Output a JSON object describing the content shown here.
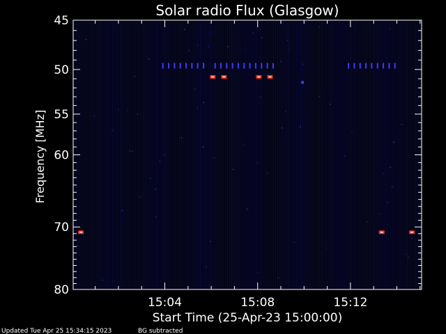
{
  "chart_data": {
    "type": "heatmap",
    "title": "Solar radio Flux (Glasgow)",
    "xlabel": "Start Time (25-Apr-23 15:00:00)",
    "ylabel": "Frequency [MHz]",
    "xlim": [
      "15:00:03",
      "15:15:04"
    ],
    "ylim": [
      45,
      80
    ],
    "y_scale": "log",
    "y_axis_inverted": true,
    "x_ticks": [
      "15:04",
      "15:08",
      "15:12"
    ],
    "y_ticks": [
      45,
      50,
      55,
      60,
      70,
      80
    ],
    "grid": false,
    "background_color": "#05051a",
    "colors": {
      "background": "#000000",
      "plot_background": "#05051a",
      "stripe": "#0a0a3a",
      "faint_blue": "#2a2aa8",
      "mid_blue": "#3c3cff",
      "hot_red": "#ff2a1a",
      "hot_center": "#ffd0c0",
      "axis": "#ffffff",
      "text": "#ffffff"
    },
    "interference_50MHz_times": [
      "15:03:55",
      "15:04:10",
      "15:04:25",
      "15:04:40",
      "15:04:55",
      "15:05:10",
      "15:05:25",
      "15:05:40",
      "15:06:10",
      "15:06:25",
      "15:06:40",
      "15:06:55",
      "15:07:10",
      "15:07:25",
      "15:07:40",
      "15:07:55",
      "15:08:10",
      "15:08:25",
      "15:08:40",
      "15:11:55",
      "15:12:10",
      "15:12:25",
      "15:12:40",
      "15:12:55",
      "15:13:10",
      "15:13:25",
      "15:13:40",
      "15:13:55"
    ],
    "hot_pixels": [
      {
        "time": "15:06:04",
        "freq": 50.8,
        "intensity": "high"
      },
      {
        "time": "15:06:33",
        "freq": 50.8,
        "intensity": "high"
      },
      {
        "time": "15:08:03",
        "freq": 50.8,
        "intensity": "high"
      },
      {
        "time": "15:08:32",
        "freq": 50.8,
        "intensity": "high"
      },
      {
        "time": "15:00:23",
        "freq": 70.8,
        "intensity": "high"
      },
      {
        "time": "15:13:21",
        "freq": 70.8,
        "intensity": "high"
      },
      {
        "time": "15:14:39",
        "freq": 70.8,
        "intensity": "high"
      },
      {
        "time": "15:09:56",
        "freq": 51.4,
        "intensity": "medium"
      }
    ]
  },
  "footer": {
    "updated": "Updated Tue Apr 25 15:34:15 2023",
    "bg_note": "BG subtracted"
  }
}
